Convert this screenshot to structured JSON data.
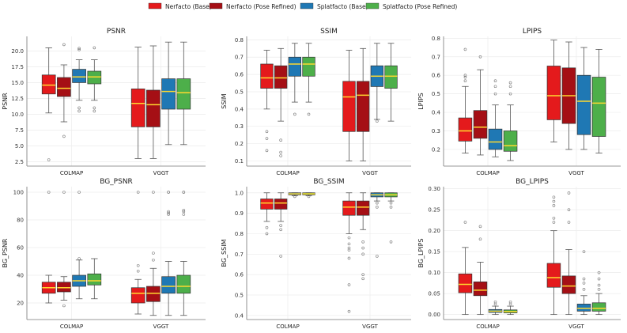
{
  "legend": [
    {
      "name": "Nerfacto (Base)",
      "color": "#e41a1c"
    },
    {
      "name": "Nerfacto (Pose Refined)",
      "color": "#a50f15"
    },
    {
      "name": "Splatfacto (Base)",
      "color": "#1f78b4"
    },
    {
      "name": "Splatfacto (Pose Refined)",
      "color": "#4daf4a"
    }
  ],
  "median_color": "#ffd92f",
  "chart_data": [
    {
      "type": "box",
      "title": "PSNR",
      "ylabel": "PSNR",
      "categories": [
        "COLMAP",
        "VGGT"
      ],
      "ylim": [
        1.8,
        22.3
      ],
      "yticks": [
        2.5,
        5.0,
        7.5,
        10.0,
        12.5,
        15.0,
        17.5,
        20.0
      ],
      "decimals": 1,
      "boxes": [
        [
          {
            "q1": 13.2,
            "med": 14.6,
            "q3": 16.2,
            "lo": 10.2,
            "hi": 20.5,
            "out": [
              2.8
            ]
          },
          {
            "q1": 12.8,
            "med": 14.1,
            "q3": 15.8,
            "lo": 8.8,
            "hi": 17.8,
            "out": [
              6.5,
              21.0
            ]
          },
          {
            "q1": 15.0,
            "med": 15.9,
            "q3": 17.1,
            "lo": 12.2,
            "hi": 18.6,
            "out": [
              10.5,
              11.0,
              20.2,
              20.4
            ]
          },
          {
            "q1": 14.8,
            "med": 15.9,
            "q3": 16.8,
            "lo": 12.2,
            "hi": 18.6,
            "out": [
              10.5,
              11.0,
              20.5
            ]
          }
        ],
        [
          {
            "q1": 8.0,
            "med": 11.7,
            "q3": 14.0,
            "lo": 3.0,
            "hi": 20.6,
            "out": []
          },
          {
            "q1": 8.0,
            "med": 11.5,
            "q3": 13.8,
            "lo": 3.0,
            "hi": 20.8,
            "out": []
          },
          {
            "q1": 10.8,
            "med": 13.6,
            "q3": 15.6,
            "lo": 5.2,
            "hi": 21.4,
            "out": []
          },
          {
            "q1": 10.8,
            "med": 13.4,
            "q3": 15.6,
            "lo": 5.2,
            "hi": 21.4,
            "out": []
          }
        ]
      ]
    },
    {
      "type": "box",
      "title": "SSIM",
      "ylabel": "SSIM",
      "categories": [
        "COLMAP",
        "VGGT"
      ],
      "ylim": [
        0.07,
        0.82
      ],
      "yticks": [
        0.1,
        0.2,
        0.3,
        0.4,
        0.5,
        0.6,
        0.7,
        0.8
      ],
      "decimals": 1,
      "boxes": [
        [
          {
            "q1": 0.52,
            "med": 0.58,
            "q3": 0.66,
            "lo": 0.4,
            "hi": 0.74,
            "out": [
              0.16,
              0.23,
              0.27
            ]
          },
          {
            "q1": 0.52,
            "med": 0.58,
            "q3": 0.65,
            "lo": 0.33,
            "hi": 0.75,
            "out": [
              0.13,
              0.15,
              0.22
            ]
          },
          {
            "q1": 0.59,
            "med": 0.66,
            "q3": 0.7,
            "lo": 0.44,
            "hi": 0.78,
            "out": [
              0.37
            ]
          },
          {
            "q1": 0.59,
            "med": 0.66,
            "q3": 0.7,
            "lo": 0.44,
            "hi": 0.78,
            "out": [
              0.37
            ]
          }
        ],
        [
          {
            "q1": 0.27,
            "med": 0.47,
            "q3": 0.56,
            "lo": 0.1,
            "hi": 0.74,
            "out": []
          },
          {
            "q1": 0.27,
            "med": 0.48,
            "q3": 0.56,
            "lo": 0.1,
            "hi": 0.75,
            "out": []
          },
          {
            "q1": 0.53,
            "med": 0.59,
            "q3": 0.65,
            "lo": 0.34,
            "hi": 0.78,
            "out": [
              0.33
            ]
          },
          {
            "q1": 0.52,
            "med": 0.59,
            "q3": 0.65,
            "lo": 0.33,
            "hi": 0.78,
            "out": []
          }
        ]
      ]
    },
    {
      "type": "box",
      "title": "LPIPS",
      "ylabel": "LPIPS",
      "categories": [
        "COLMAP",
        "VGGT"
      ],
      "ylim": [
        0.11,
        0.81
      ],
      "yticks": [
        0.2,
        0.3,
        0.4,
        0.5,
        0.6,
        0.7,
        0.8
      ],
      "decimals": 1,
      "boxes": [
        [
          {
            "q1": 0.245,
            "med": 0.3,
            "q3": 0.37,
            "lo": 0.18,
            "hi": 0.54,
            "out": [
              0.57,
              0.59,
              0.6,
              0.74
            ]
          },
          {
            "q1": 0.26,
            "med": 0.32,
            "q3": 0.41,
            "lo": 0.17,
            "hi": 0.63,
            "out": [
              0.7
            ]
          },
          {
            "q1": 0.2,
            "med": 0.24,
            "q3": 0.31,
            "lo": 0.16,
            "hi": 0.44,
            "out": [
              0.5,
              0.54,
              0.57
            ]
          },
          {
            "q1": 0.19,
            "med": 0.22,
            "q3": 0.3,
            "lo": 0.14,
            "hi": 0.44,
            "out": [
              0.5,
              0.54,
              0.56
            ]
          }
        ],
        [
          {
            "q1": 0.36,
            "med": 0.49,
            "q3": 0.65,
            "lo": 0.24,
            "hi": 0.79,
            "out": []
          },
          {
            "q1": 0.34,
            "med": 0.49,
            "q3": 0.64,
            "lo": 0.2,
            "hi": 0.78,
            "out": []
          },
          {
            "q1": 0.28,
            "med": 0.46,
            "q3": 0.6,
            "lo": 0.2,
            "hi": 0.75,
            "out": []
          },
          {
            "q1": 0.27,
            "med": 0.45,
            "q3": 0.59,
            "lo": 0.18,
            "hi": 0.74,
            "out": []
          }
        ]
      ]
    },
    {
      "type": "box",
      "title": "BG_PSNR",
      "ylabel": "BG_PSNR",
      "categories": [
        "COLMAP",
        "VGGT"
      ],
      "ylim": [
        8,
        104
      ],
      "yticks": [
        20,
        40,
        60,
        80,
        100
      ],
      "decimals": 0,
      "boxes": [
        [
          {
            "q1": 27,
            "med": 31,
            "q3": 35,
            "lo": 20,
            "hi": 40,
            "out": [
              100
            ]
          },
          {
            "q1": 28,
            "med": 31,
            "q3": 35,
            "lo": 22,
            "hi": 39,
            "out": [
              18,
              100
            ]
          },
          {
            "q1": 32,
            "med": 36,
            "q3": 40,
            "lo": 23,
            "hi": 51,
            "out": [
              52,
              100
            ]
          },
          {
            "q1": 33,
            "med": 36,
            "q3": 41,
            "lo": 23,
            "hi": 52,
            "out": []
          }
        ],
        [
          {
            "q1": 20,
            "med": 27,
            "q3": 31,
            "lo": 12,
            "hi": 37,
            "out": [
              43,
              47,
              100
            ]
          },
          {
            "q1": 21,
            "med": 27,
            "q3": 32,
            "lo": 11,
            "hi": 45,
            "out": [
              51,
              56,
              100
            ]
          },
          {
            "q1": 27,
            "med": 32,
            "q3": 39,
            "lo": 11,
            "hi": 50,
            "out": [
              84,
              85,
              86,
              100,
              100
            ]
          },
          {
            "q1": 27,
            "med": 32,
            "q3": 40,
            "lo": 11,
            "hi": 50,
            "out": [
              84,
              86,
              87,
              100,
              100
            ]
          }
        ]
      ]
    },
    {
      "type": "box",
      "title": "BG_SSIM",
      "ylabel": "BG_SSIM",
      "categories": [
        "COLMAP",
        "VGGT"
      ],
      "ylim": [
        0.38,
        1.03
      ],
      "yticks": [
        0.4,
        0.5,
        0.6,
        0.7,
        0.8,
        0.9,
        1.0
      ],
      "decimals": 1,
      "boxes": [
        [
          {
            "q1": 0.92,
            "med": 0.95,
            "q3": 0.97,
            "lo": 0.86,
            "hi": 1.0,
            "out": [
              0.8,
              0.83
            ]
          },
          {
            "q1": 0.92,
            "med": 0.95,
            "q3": 0.97,
            "lo": 0.86,
            "hi": 1.0,
            "out": [
              0.69,
              0.82,
              0.84
            ]
          },
          {
            "q1": 0.99,
            "med": 0.995,
            "q3": 1.0,
            "lo": 0.985,
            "hi": 1.0,
            "out": [
              0.982
            ]
          },
          {
            "q1": 0.99,
            "med": 0.995,
            "q3": 1.0,
            "lo": 0.985,
            "hi": 1.0,
            "out": [
              0.982
            ]
          }
        ],
        [
          {
            "q1": 0.89,
            "med": 0.93,
            "q3": 0.96,
            "lo": 0.8,
            "hi": 1.0,
            "out": [
              0.42,
              0.55,
              0.68,
              0.72,
              0.73,
              0.75,
              0.78
            ]
          },
          {
            "q1": 0.89,
            "med": 0.93,
            "q3": 0.96,
            "lo": 0.82,
            "hi": 1.0,
            "out": [
              0.58,
              0.6,
              0.7,
              0.73,
              0.76
            ]
          },
          {
            "q1": 0.98,
            "med": 0.99,
            "q3": 1.0,
            "lo": 0.96,
            "hi": 1.0,
            "out": [
              0.69,
              0.93,
              0.95
            ]
          },
          {
            "q1": 0.98,
            "med": 0.99,
            "q3": 1.0,
            "lo": 0.96,
            "hi": 1.0,
            "out": [
              0.76,
              0.93,
              0.95
            ]
          }
        ]
      ]
    },
    {
      "type": "box",
      "title": "BG_LPIPS",
      "ylabel": "BG_LPIPS",
      "categories": [
        "COLMAP",
        "VGGT"
      ],
      "ylim": [
        -0.012,
        0.305
      ],
      "yticks": [
        0.0,
        0.05,
        0.1,
        0.15,
        0.2,
        0.25,
        0.3
      ],
      "decimals": 2,
      "boxes": [
        [
          {
            "q1": 0.052,
            "med": 0.072,
            "q3": 0.097,
            "lo": 0.0,
            "hi": 0.16,
            "out": [
              0.22
            ]
          },
          {
            "q1": 0.045,
            "med": 0.058,
            "q3": 0.078,
            "lo": 0.0,
            "hi": 0.125,
            "out": [
              0.18,
              0.21
            ]
          },
          {
            "q1": 0.005,
            "med": 0.008,
            "q3": 0.012,
            "lo": 0.0,
            "hi": 0.02,
            "out": [
              0.025,
              0.03
            ]
          },
          {
            "q1": 0.004,
            "med": 0.007,
            "q3": 0.011,
            "lo": 0.0,
            "hi": 0.02,
            "out": [
              0.025,
              0.03
            ]
          }
        ],
        [
          {
            "q1": 0.065,
            "med": 0.088,
            "q3": 0.122,
            "lo": 0.0,
            "hi": 0.2,
            "out": [
              0.22,
              0.23,
              0.26,
              0.27,
              0.28
            ]
          },
          {
            "q1": 0.05,
            "med": 0.068,
            "q3": 0.092,
            "lo": 0.0,
            "hi": 0.155,
            "out": [
              0.22,
              0.25,
              0.29
            ]
          },
          {
            "q1": 0.008,
            "med": 0.015,
            "q3": 0.025,
            "lo": 0.0,
            "hi": 0.045,
            "out": [
              0.06,
              0.075,
              0.085,
              0.15
            ]
          },
          {
            "q1": 0.008,
            "med": 0.015,
            "q3": 0.028,
            "lo": 0.0,
            "hi": 0.05,
            "out": [
              0.06,
              0.07,
              0.085,
              0.1
            ]
          }
        ]
      ]
    }
  ]
}
